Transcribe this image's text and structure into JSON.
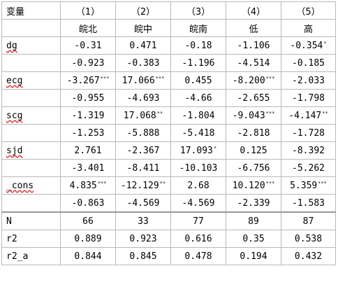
{
  "table": {
    "corner_label": "变量",
    "model_numbers": [
      "（1）",
      "（2）",
      "（3）",
      "（4）",
      "（5）"
    ],
    "group_names": [
      "皖北",
      "皖中",
      "皖南",
      "低",
      "高"
    ],
    "variables": [
      {
        "name": "dg",
        "coef": [
          {
            "v": "-0.31",
            "stars": ""
          },
          {
            "v": "0.471",
            "stars": ""
          },
          {
            "v": "-0.18",
            "stars": ""
          },
          {
            "v": "-1.106",
            "stars": ""
          },
          {
            "v": "-0.354",
            "stars": "*"
          }
        ],
        "se": [
          "-0.923",
          "-0.383",
          "-1.196",
          "-4.514",
          "-0.185"
        ]
      },
      {
        "name": "ecg",
        "coef": [
          {
            "v": "-3.267",
            "stars": "***"
          },
          {
            "v": "17.066",
            "stars": "***"
          },
          {
            "v": "0.455",
            "stars": ""
          },
          {
            "v": "-8.200",
            "stars": "***"
          },
          {
            "v": "-2.033",
            "stars": ""
          }
        ],
        "se": [
          "-0.955",
          "-4.693",
          "-4.66",
          "-2.655",
          "-1.798"
        ]
      },
      {
        "name": "scg",
        "coef": [
          {
            "v": "-1.319",
            "stars": ""
          },
          {
            "v": "17.068",
            "stars": "**"
          },
          {
            "v": "-1.804",
            "stars": ""
          },
          {
            "v": "-9.043",
            "stars": "***"
          },
          {
            "v": "-4.147",
            "stars": "**"
          }
        ],
        "se": [
          "-1.253",
          "-5.888",
          "-5.418",
          "-2.818",
          "-1.728"
        ]
      },
      {
        "name": "sjd",
        "coef": [
          {
            "v": "2.761",
            "stars": ""
          },
          {
            "v": "-2.367",
            "stars": ""
          },
          {
            "v": "17.093",
            "stars": "*"
          },
          {
            "v": "0.125",
            "stars": ""
          },
          {
            "v": "-8.392",
            "stars": ""
          }
        ],
        "se": [
          "-3.401",
          "-8.411",
          "-10.103",
          "-6.756",
          "-5.262"
        ]
      },
      {
        "name": "_cons",
        "coef": [
          {
            "v": "4.835",
            "stars": "***"
          },
          {
            "v": "-12.129",
            "stars": "**"
          },
          {
            "v": "2.68",
            "stars": ""
          },
          {
            "v": "10.120",
            "stars": "***"
          },
          {
            "v": "5.359",
            "stars": "***"
          }
        ],
        "se": [
          "-0.863",
          "-4.569",
          "-4.569",
          "-2.339",
          "-1.583"
        ]
      }
    ],
    "stats": [
      {
        "name": "N",
        "values": [
          "66",
          "33",
          "77",
          "89",
          "87"
        ]
      },
      {
        "name": "r2",
        "values": [
          "0.889",
          "0.923",
          "0.616",
          "0.35",
          "0.538"
        ]
      },
      {
        "name": "r2_a",
        "values": [
          "0.844",
          "0.845",
          "0.478",
          "0.194",
          "0.432"
        ]
      }
    ]
  }
}
